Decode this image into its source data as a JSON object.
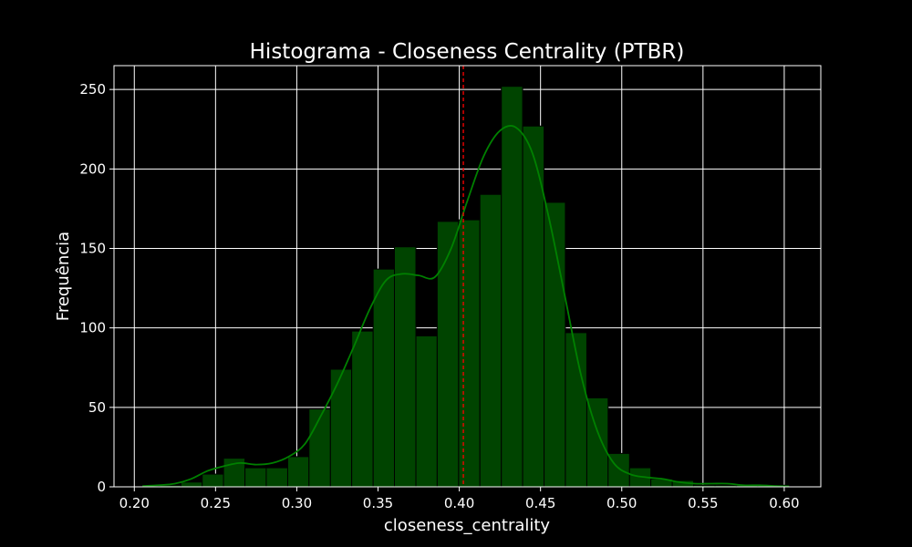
{
  "chart_data": {
    "type": "histogram",
    "title": "Histograma - Closeness Centrality (PTBR)",
    "xlabel": "closeness_centrality",
    "ylabel": "Frequência",
    "xlim": [
      0.1875,
      0.6225
    ],
    "ylim": [
      0,
      265
    ],
    "x_ticks": [
      0.2,
      0.25,
      0.3,
      0.35,
      0.4,
      0.45,
      0.5,
      0.55,
      0.6
    ],
    "x_tick_labels": [
      "0.20",
      "0.25",
      "0.30",
      "0.35",
      "0.40",
      "0.45",
      "0.50",
      "0.55",
      "0.60"
    ],
    "y_ticks": [
      0,
      50,
      100,
      150,
      200,
      250
    ],
    "y_tick_labels": [
      "0",
      "50",
      "100",
      "150",
      "200",
      "250"
    ],
    "grid": true,
    "bins": [
      {
        "x0": 0.2155,
        "x1": 0.2287,
        "count": 1
      },
      {
        "x0": 0.2287,
        "x1": 0.2418,
        "count": 3
      },
      {
        "x0": 0.2418,
        "x1": 0.2549,
        "count": 8
      },
      {
        "x0": 0.2549,
        "x1": 0.2681,
        "count": 18
      },
      {
        "x0": 0.2681,
        "x1": 0.2812,
        "count": 12
      },
      {
        "x0": 0.2812,
        "x1": 0.2944,
        "count": 12
      },
      {
        "x0": 0.2944,
        "x1": 0.3075,
        "count": 19
      },
      {
        "x0": 0.3075,
        "x1": 0.3207,
        "count": 49
      },
      {
        "x0": 0.3207,
        "x1": 0.3338,
        "count": 74
      },
      {
        "x0": 0.3338,
        "x1": 0.347,
        "count": 98
      },
      {
        "x0": 0.347,
        "x1": 0.3601,
        "count": 137
      },
      {
        "x0": 0.3601,
        "x1": 0.3733,
        "count": 151
      },
      {
        "x0": 0.3733,
        "x1": 0.3864,
        "count": 95
      },
      {
        "x0": 0.3864,
        "x1": 0.3996,
        "count": 167
      },
      {
        "x0": 0.3996,
        "x1": 0.4127,
        "count": 168
      },
      {
        "x0": 0.4127,
        "x1": 0.4259,
        "count": 184
      },
      {
        "x0": 0.4259,
        "x1": 0.439,
        "count": 252
      },
      {
        "x0": 0.439,
        "x1": 0.4522,
        "count": 227
      },
      {
        "x0": 0.4522,
        "x1": 0.4653,
        "count": 179
      },
      {
        "x0": 0.4653,
        "x1": 0.4785,
        "count": 97
      },
      {
        "x0": 0.4785,
        "x1": 0.4916,
        "count": 56
      },
      {
        "x0": 0.4916,
        "x1": 0.5048,
        "count": 21
      },
      {
        "x0": 0.5048,
        "x1": 0.5179,
        "count": 12
      },
      {
        "x0": 0.5179,
        "x1": 0.5311,
        "count": 5
      },
      {
        "x0": 0.5311,
        "x1": 0.5442,
        "count": 4
      },
      {
        "x0": 0.5442,
        "x1": 0.5574,
        "count": 1
      },
      {
        "x0": 0.5574,
        "x1": 0.5705,
        "count": 1
      },
      {
        "x0": 0.5705,
        "x1": 0.5837,
        "count": 1
      },
      {
        "x0": 0.5837,
        "x1": 0.5968,
        "count": 1
      },
      {
        "x0": 0.5968,
        "x1": 0.6029,
        "count": 1
      }
    ],
    "kde": {
      "x": [
        0.205,
        0.215,
        0.225,
        0.235,
        0.245,
        0.255,
        0.265,
        0.275,
        0.285,
        0.295,
        0.305,
        0.315,
        0.325,
        0.335,
        0.345,
        0.355,
        0.365,
        0.375,
        0.385,
        0.395,
        0.405,
        0.415,
        0.425,
        0.435,
        0.445,
        0.455,
        0.465,
        0.475,
        0.485,
        0.495,
        0.505,
        0.515,
        0.525,
        0.535,
        0.545,
        0.555,
        0.565,
        0.575,
        0.585,
        0.595,
        0.603
      ],
      "y": [
        0.5,
        1,
        2,
        5,
        10,
        13,
        15,
        14,
        15,
        19,
        27,
        45,
        65,
        88,
        112,
        130,
        134,
        133,
        132,
        150,
        180,
        208,
        224,
        226,
        210,
        170,
        120,
        70,
        35,
        15,
        8,
        6,
        5,
        3,
        2,
        2,
        2,
        1,
        1,
        0.5,
        0.3
      ]
    },
    "mean_line": {
      "x": 0.4025,
      "style": "dashed"
    },
    "colors": {
      "background": "#000000",
      "bar_fill": "#004400",
      "bar_edge": "#000000",
      "kde_line": "#008000",
      "mean_line": "#ff0000",
      "grid": "#ffffff",
      "text": "#ffffff"
    }
  }
}
